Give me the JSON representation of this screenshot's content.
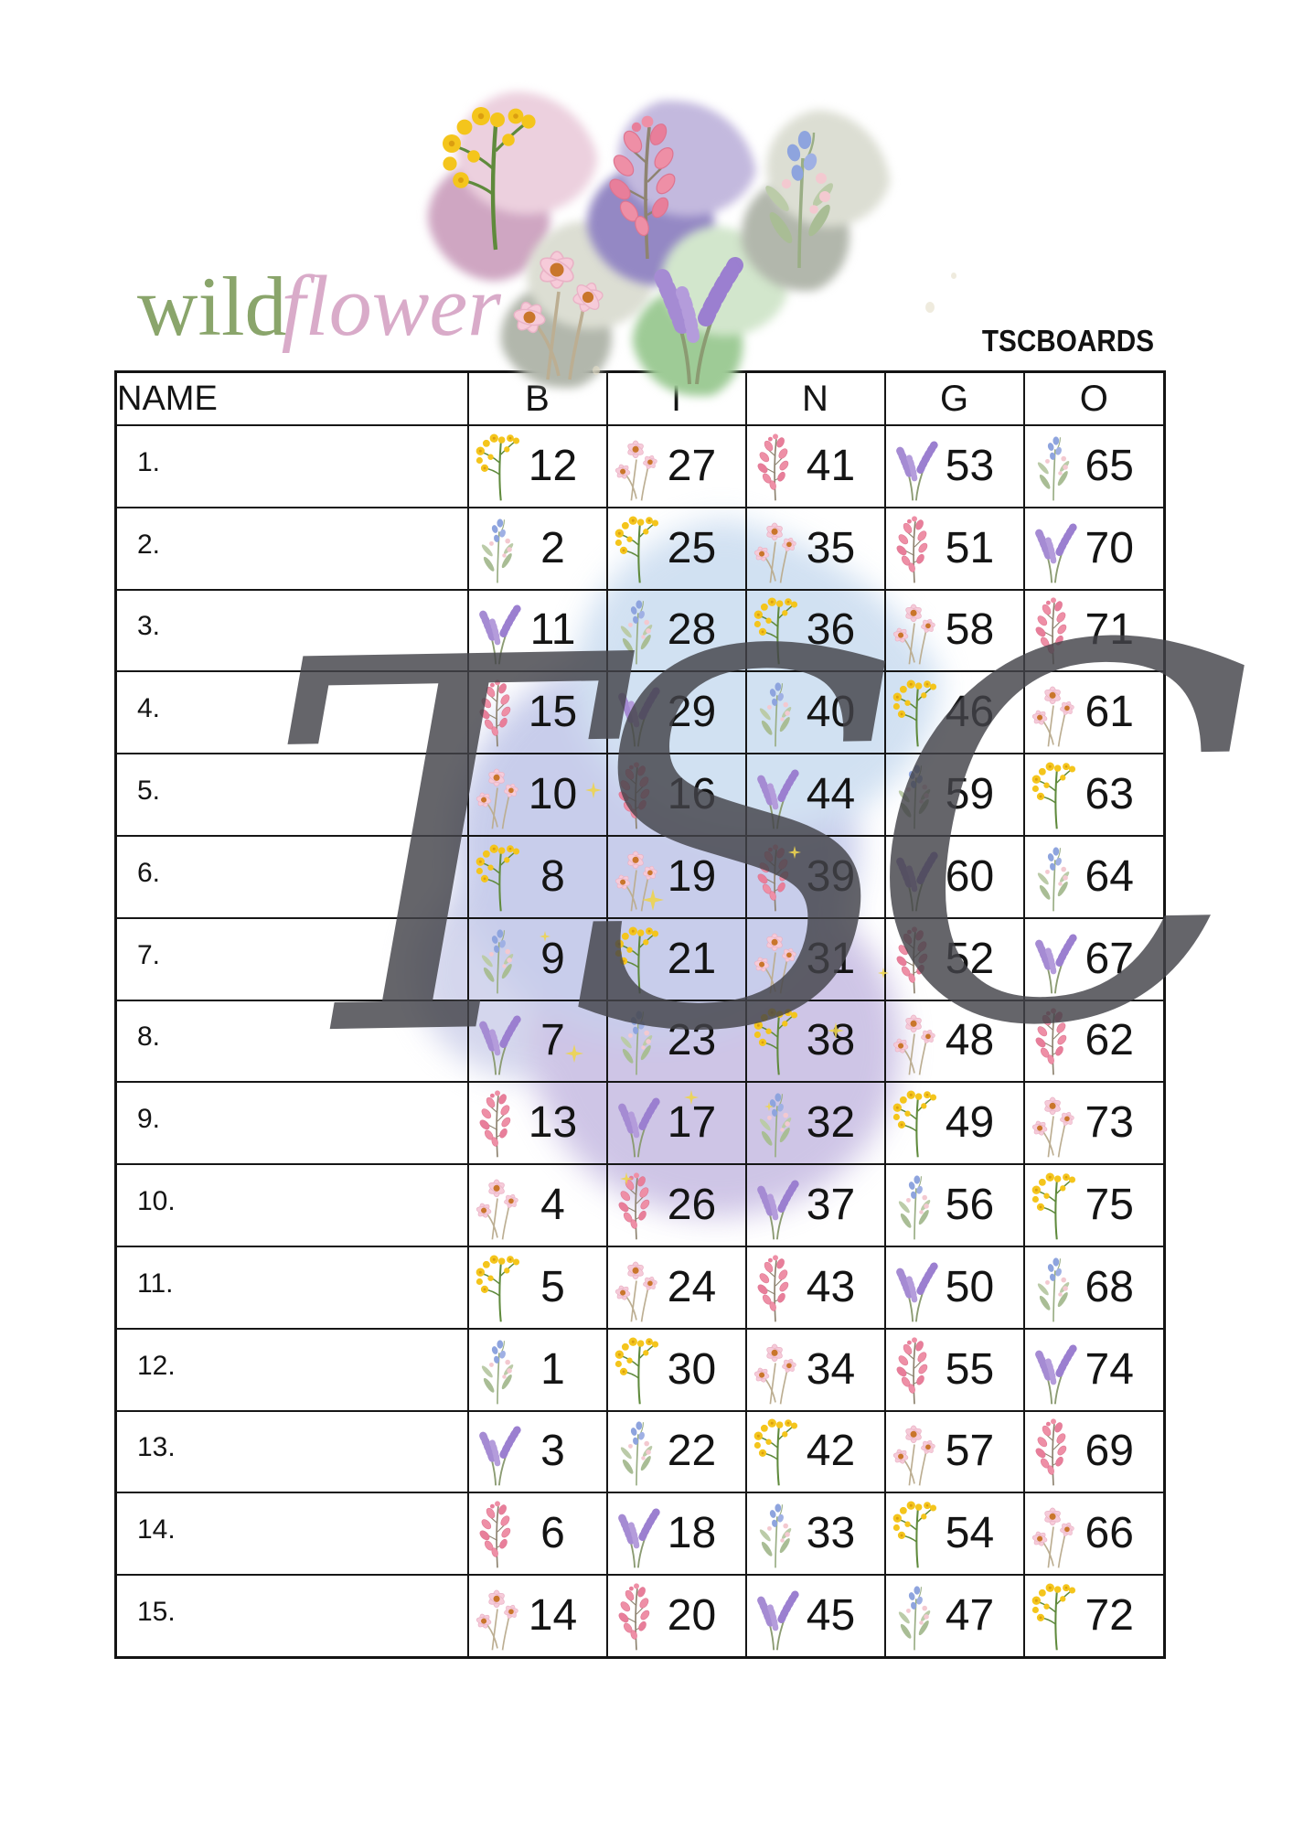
{
  "logo": {
    "wild": "wild",
    "flower": "flower",
    "wild_color": "#8AA56B",
    "flower_color": "#D9ABC9"
  },
  "brand": {
    "text": "TSCBOARDS"
  },
  "watermark": {
    "text": "TSC",
    "color": "#434349"
  },
  "decor": [
    {
      "blob": "pink",
      "flower": "yellow"
    },
    {
      "blob": "sage",
      "flower": "pink-cosmos"
    },
    {
      "blob": "purple",
      "flower": "dark-pink"
    },
    {
      "blob": "green",
      "flower": "lavender"
    },
    {
      "blob": "sage",
      "flower": "blue-mixed"
    }
  ],
  "flower_colors": {
    "yellow": "#F4C51C",
    "pink-cosmos": "#F6CBD9",
    "dark-pink": "#EE8FA6",
    "lavender": "#A58BD3",
    "blue-mixed": "#8EA4DE"
  },
  "table": {
    "name_header": "NAME",
    "columns": [
      "B",
      "I",
      "N",
      "G",
      "O"
    ],
    "rows": [
      {
        "label": "1.",
        "cells": [
          {
            "num": 12,
            "flower": "yellow"
          },
          {
            "num": 27,
            "flower": "pink-cosmos"
          },
          {
            "num": 41,
            "flower": "dark-pink"
          },
          {
            "num": 53,
            "flower": "lavender"
          },
          {
            "num": 65,
            "flower": "blue-mixed"
          }
        ]
      },
      {
        "label": "2.",
        "cells": [
          {
            "num": 2,
            "flower": "blue-mixed"
          },
          {
            "num": 25,
            "flower": "yellow"
          },
          {
            "num": 35,
            "flower": "pink-cosmos"
          },
          {
            "num": 51,
            "flower": "dark-pink"
          },
          {
            "num": 70,
            "flower": "lavender"
          }
        ]
      },
      {
        "label": "3.",
        "cells": [
          {
            "num": 11,
            "flower": "lavender"
          },
          {
            "num": 28,
            "flower": "blue-mixed"
          },
          {
            "num": 36,
            "flower": "yellow"
          },
          {
            "num": 58,
            "flower": "pink-cosmos"
          },
          {
            "num": 71,
            "flower": "dark-pink"
          }
        ]
      },
      {
        "label": "4.",
        "cells": [
          {
            "num": 15,
            "flower": "dark-pink"
          },
          {
            "num": 29,
            "flower": "lavender"
          },
          {
            "num": 40,
            "flower": "blue-mixed"
          },
          {
            "num": 46,
            "flower": "yellow"
          },
          {
            "num": 61,
            "flower": "pink-cosmos"
          }
        ]
      },
      {
        "label": "5.",
        "cells": [
          {
            "num": 10,
            "flower": "pink-cosmos"
          },
          {
            "num": 16,
            "flower": "dark-pink"
          },
          {
            "num": 44,
            "flower": "lavender"
          },
          {
            "num": 59,
            "flower": "blue-mixed"
          },
          {
            "num": 63,
            "flower": "yellow"
          }
        ]
      },
      {
        "label": "6.",
        "cells": [
          {
            "num": 8,
            "flower": "yellow"
          },
          {
            "num": 19,
            "flower": "pink-cosmos"
          },
          {
            "num": 39,
            "flower": "dark-pink"
          },
          {
            "num": 60,
            "flower": "lavender"
          },
          {
            "num": 64,
            "flower": "blue-mixed"
          }
        ]
      },
      {
        "label": "7.",
        "cells": [
          {
            "num": 9,
            "flower": "blue-mixed"
          },
          {
            "num": 21,
            "flower": "yellow"
          },
          {
            "num": 31,
            "flower": "pink-cosmos"
          },
          {
            "num": 52,
            "flower": "dark-pink"
          },
          {
            "num": 67,
            "flower": "lavender"
          }
        ]
      },
      {
        "label": "8.",
        "cells": [
          {
            "num": 7,
            "flower": "lavender"
          },
          {
            "num": 23,
            "flower": "blue-mixed"
          },
          {
            "num": 38,
            "flower": "yellow"
          },
          {
            "num": 48,
            "flower": "pink-cosmos"
          },
          {
            "num": 62,
            "flower": "dark-pink"
          }
        ]
      },
      {
        "label": "9.",
        "cells": [
          {
            "num": 13,
            "flower": "dark-pink"
          },
          {
            "num": 17,
            "flower": "lavender"
          },
          {
            "num": 32,
            "flower": "blue-mixed"
          },
          {
            "num": 49,
            "flower": "yellow"
          },
          {
            "num": 73,
            "flower": "pink-cosmos"
          }
        ]
      },
      {
        "label": "10.",
        "cells": [
          {
            "num": 4,
            "flower": "pink-cosmos"
          },
          {
            "num": 26,
            "flower": "dark-pink"
          },
          {
            "num": 37,
            "flower": "lavender"
          },
          {
            "num": 56,
            "flower": "blue-mixed"
          },
          {
            "num": 75,
            "flower": "yellow"
          }
        ]
      },
      {
        "label": "11.",
        "cells": [
          {
            "num": 5,
            "flower": "yellow"
          },
          {
            "num": 24,
            "flower": "pink-cosmos"
          },
          {
            "num": 43,
            "flower": "dark-pink"
          },
          {
            "num": 50,
            "flower": "lavender"
          },
          {
            "num": 68,
            "flower": "blue-mixed"
          }
        ]
      },
      {
        "label": "12.",
        "cells": [
          {
            "num": 1,
            "flower": "blue-mixed"
          },
          {
            "num": 30,
            "flower": "yellow"
          },
          {
            "num": 34,
            "flower": "pink-cosmos"
          },
          {
            "num": 55,
            "flower": "dark-pink"
          },
          {
            "num": 74,
            "flower": "lavender"
          }
        ]
      },
      {
        "label": "13.",
        "cells": [
          {
            "num": 3,
            "flower": "lavender"
          },
          {
            "num": 22,
            "flower": "blue-mixed"
          },
          {
            "num": 42,
            "flower": "yellow"
          },
          {
            "num": 57,
            "flower": "pink-cosmos"
          },
          {
            "num": 69,
            "flower": "dark-pink"
          }
        ]
      },
      {
        "label": "14.",
        "cells": [
          {
            "num": 6,
            "flower": "dark-pink"
          },
          {
            "num": 18,
            "flower": "lavender"
          },
          {
            "num": 33,
            "flower": "blue-mixed"
          },
          {
            "num": 54,
            "flower": "yellow"
          },
          {
            "num": 66,
            "flower": "pink-cosmos"
          }
        ]
      },
      {
        "label": "15.",
        "cells": [
          {
            "num": 14,
            "flower": "pink-cosmos"
          },
          {
            "num": 20,
            "flower": "dark-pink"
          },
          {
            "num": 45,
            "flower": "lavender"
          },
          {
            "num": 47,
            "flower": "blue-mixed"
          },
          {
            "num": 72,
            "flower": "yellow"
          }
        ]
      }
    ]
  }
}
